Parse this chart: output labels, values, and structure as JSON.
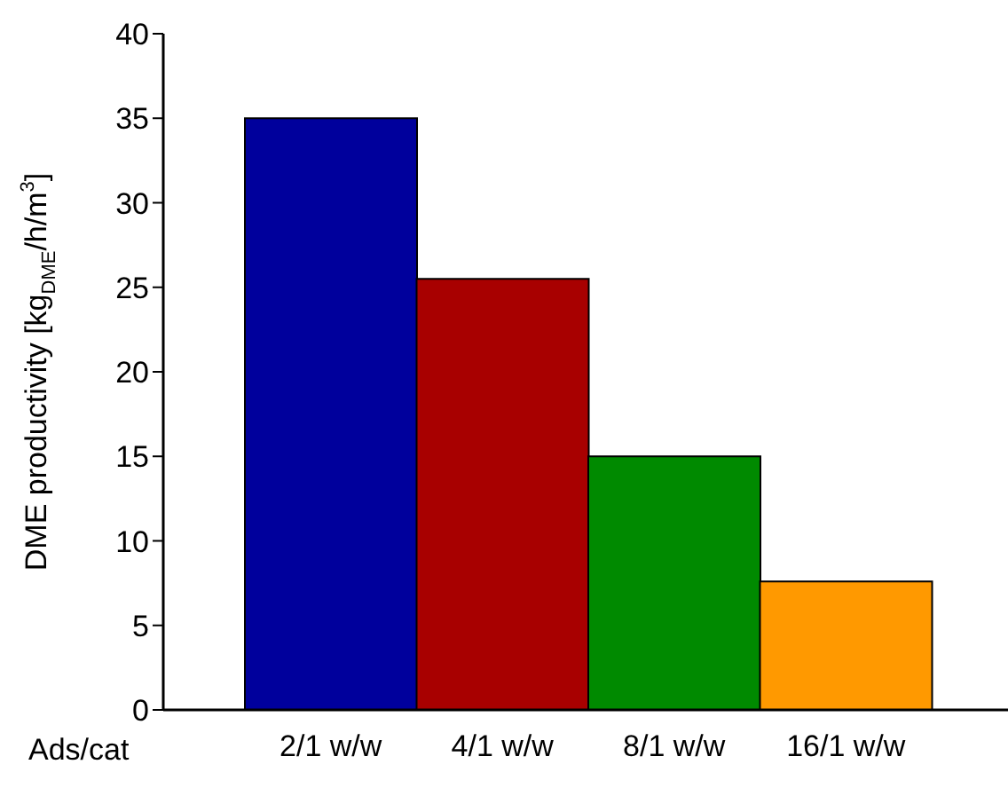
{
  "chart_data": {
    "type": "bar",
    "xlabel": "Ads/cat",
    "ylabel": "DME productivity [kg$_{DME}$/h/m$^{3}$]",
    "categories": [
      "2/1 w/w",
      "4/1 w/w",
      "8/1 w/w",
      "16/1 w/w"
    ],
    "values": [
      35,
      25.5,
      15,
      7.6
    ],
    "colors": [
      "#00009c",
      "#a80000",
      "#008a00",
      "#ff9900"
    ],
    "ylim": [
      0,
      40
    ],
    "yticks": [
      0,
      5,
      10,
      15,
      20,
      25,
      30,
      35,
      40
    ],
    "grid": false,
    "legend": false
  }
}
